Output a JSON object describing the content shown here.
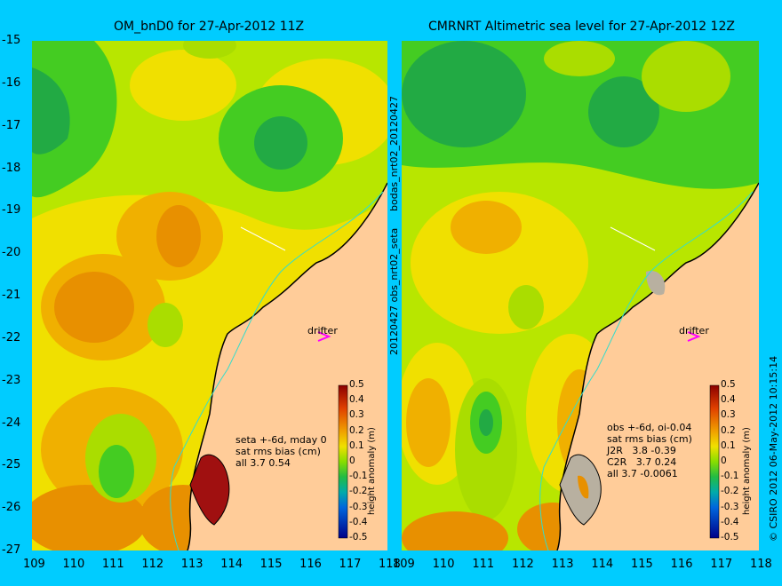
{
  "left": {
    "title": "OM_bnD0 for 27-Apr-2012 11Z",
    "stats": "seta +-6d, mday 0\nsat rms bias (cm)\nall 3.7 0.54"
  },
  "right": {
    "title": "CMRNRT Altimetric sea level  for 27-Apr-2012 12Z",
    "stats": "obs +-6d, oi-0.04\nsat rms bias (cm)\nJ2R   3.8 -0.39\nC2R   3.7 0.24\nall 3.7 -0.0061"
  },
  "drifter_label": "drifter",
  "mid_vertical_top": "bodas_nrt02_20120427",
  "mid_vertical_bottom": "20120427 obs_nrt02_seta",
  "right_vertical": "© CSIRO 2012   06-May-2012 10:15:14",
  "colorbar": {
    "title": "height anomaly (m)",
    "ticks": [
      "0.5",
      "0.4",
      "0.3",
      "0.2",
      "0.1",
      "0",
      "-0.1",
      "-0.2",
      "-0.3",
      "-0.4",
      "-0.5"
    ]
  },
  "axes": {
    "y_ticks": [
      "-15",
      "-16",
      "-17",
      "-18",
      "-19",
      "-20",
      "-21",
      "-22",
      "-23",
      "-24",
      "-25",
      "-26",
      "-27"
    ],
    "x_ticks": [
      "109",
      "110",
      "111",
      "112",
      "113",
      "114",
      "115",
      "116",
      "117",
      "118"
    ]
  }
}
